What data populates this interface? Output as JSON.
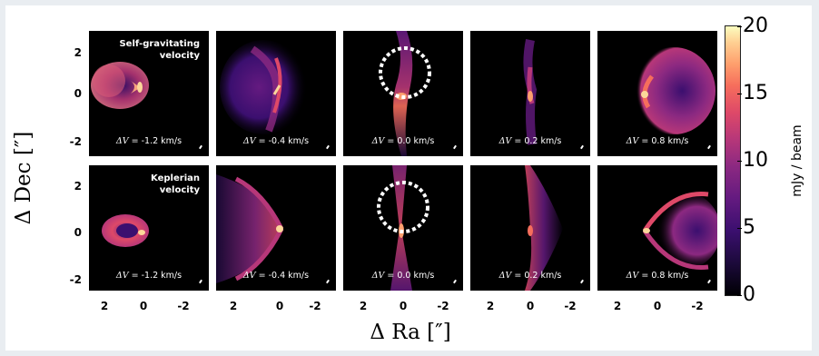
{
  "y_axis_label": "Δ Dec [″]",
  "x_axis_label": "Δ Ra [″]",
  "y_ticks": [
    "2",
    "0",
    "-2"
  ],
  "x_ticks": [
    "2",
    "0",
    "-2"
  ],
  "colorbar": {
    "unit": "mJy / beam",
    "ticks": [
      "20",
      "15",
      "10",
      "5",
      "0"
    ],
    "range": [
      0,
      20
    ]
  },
  "rows": [
    {
      "label_line1": "Self-gravitating",
      "label_line2": "velocity",
      "panels": [
        {
          "dv": " = -1.2 km/s",
          "circle": false
        },
        {
          "dv": " = -0.4 km/s",
          "circle": false
        },
        {
          "dv": " = 0.0  km/s",
          "circle": true
        },
        {
          "dv": " = 0.2  km/s",
          "circle": false
        },
        {
          "dv": " = 0.8  km/s",
          "circle": false
        }
      ]
    },
    {
      "label_line1": "Keplerian",
      "label_line2": "velocity",
      "panels": [
        {
          "dv": " = -1.2 km/s",
          "circle": false
        },
        {
          "dv": " = -0.4 km/s",
          "circle": false
        },
        {
          "dv": " = 0.0  km/s",
          "circle": true
        },
        {
          "dv": " = 0.2  km/s",
          "circle": false
        },
        {
          "dv": " = 0.8  km/s",
          "circle": false
        }
      ]
    }
  ],
  "dv_symbol": "ΔV"
}
